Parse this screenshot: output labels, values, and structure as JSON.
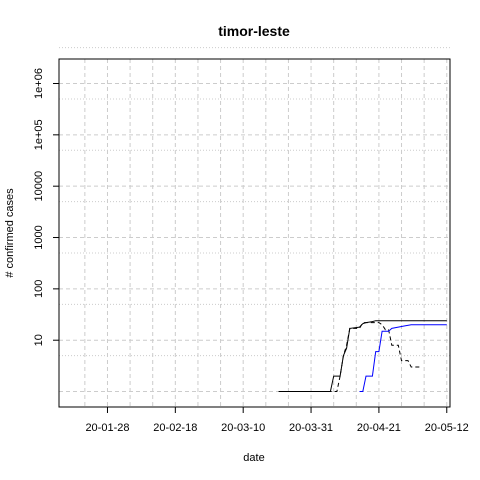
{
  "chart_data": {
    "type": "line",
    "title": "timor-leste",
    "xlabel": "date",
    "ylabel": "# confirmed cases",
    "y_scale": "log",
    "grid": true,
    "x_ticks": [
      "20-01-28",
      "20-02-18",
      "20-03-10",
      "20-03-31",
      "20-04-21",
      "20-05-12"
    ],
    "y_ticks": [
      "10",
      "100",
      "1000",
      "10000",
      "1e+05",
      "1e+06"
    ],
    "xlim": [
      "2020-01-13",
      "2020-05-13"
    ],
    "ylim": [
      0.5,
      3000000
    ],
    "series": [
      {
        "style": "solid",
        "color": "#000000",
        "points": [
          [
            "2020-03-21",
            1
          ],
          [
            "2020-04-06",
            1
          ],
          [
            "2020-04-07",
            2
          ],
          [
            "2020-04-09",
            2
          ],
          [
            "2020-04-10",
            5
          ],
          [
            "2020-04-11",
            7
          ],
          [
            "2020-04-12",
            17
          ],
          [
            "2020-04-15",
            18
          ],
          [
            "2020-04-16",
            21
          ],
          [
            "2020-04-17",
            22
          ],
          [
            "2020-04-19",
            23
          ],
          [
            "2020-04-20",
            24
          ],
          [
            "2020-05-12",
            24
          ]
        ]
      },
      {
        "style": "dashed",
        "color": "#000000",
        "points": [
          [
            "2020-03-21",
            1
          ],
          [
            "2020-04-08",
            1
          ],
          [
            "2020-04-09",
            2
          ],
          [
            "2020-04-10",
            5
          ],
          [
            "2020-04-11",
            8
          ],
          [
            "2020-04-12",
            17
          ],
          [
            "2020-04-15",
            17
          ],
          [
            "2020-04-16",
            22
          ],
          [
            "2020-04-21",
            22
          ],
          [
            "2020-04-22",
            20
          ],
          [
            "2020-04-23",
            16
          ],
          [
            "2020-04-24",
            16
          ],
          [
            "2020-04-25",
            8
          ],
          [
            "2020-04-27",
            8
          ],
          [
            "2020-04-28",
            4
          ],
          [
            "2020-04-30",
            4
          ],
          [
            "2020-05-01",
            3
          ],
          [
            "2020-05-04",
            3
          ]
        ]
      },
      {
        "style": "solid",
        "color": "#0000ff",
        "points": [
          [
            "2020-04-15",
            1
          ],
          [
            "2020-04-16",
            1
          ],
          [
            "2020-04-17",
            2
          ],
          [
            "2020-04-19",
            2
          ],
          [
            "2020-04-20",
            6
          ],
          [
            "2020-04-21",
            6
          ],
          [
            "2020-04-22",
            15
          ],
          [
            "2020-04-24",
            15
          ],
          [
            "2020-04-25",
            17
          ],
          [
            "2020-04-29",
            19
          ],
          [
            "2020-05-01",
            20
          ],
          [
            "2020-05-12",
            20
          ]
        ]
      }
    ]
  }
}
